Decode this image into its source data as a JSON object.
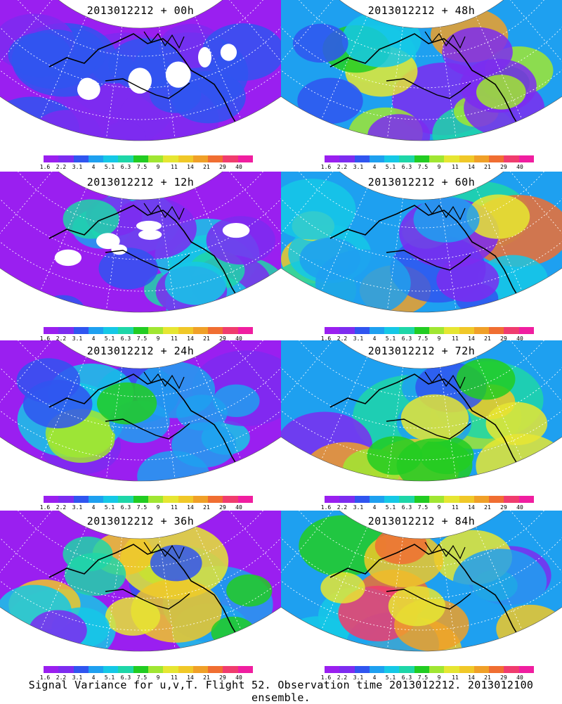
{
  "panels": [
    {
      "title": "2013012212 + 00h",
      "intensity": 0.15
    },
    {
      "title": "2013012212 + 48h",
      "intensity": 0.75
    },
    {
      "title": "2013012212 + 12h",
      "intensity": 0.35
    },
    {
      "title": "2013012212 + 60h",
      "intensity": 0.8
    },
    {
      "title": "2013012212 + 24h",
      "intensity": 0.5
    },
    {
      "title": "2013012212 + 72h",
      "intensity": 0.85
    },
    {
      "title": "2013012212 + 36h",
      "intensity": 0.6
    },
    {
      "title": "2013012212 + 84h",
      "intensity": 0.9
    }
  ],
  "colorbar": {
    "labels": [
      "1.6",
      "2.2",
      "3.1",
      "4",
      "5.1",
      "6.3",
      "7.5",
      "9",
      "11",
      "14",
      "21",
      "29",
      "40"
    ],
    "colors": [
      "#9a1ff0",
      "#7d2cf0",
      "#3055f0",
      "#1ea0f0",
      "#15c8e6",
      "#1ed6a8",
      "#22cc22",
      "#a0e632",
      "#e6e632",
      "#f0c828",
      "#f0a028",
      "#f06e32",
      "#f03c6e",
      "#f01ea0"
    ]
  },
  "caption": "Signal Variance for u,v,T. Flight 52. Observation time 2013012212. 2013012100 ensemble."
}
